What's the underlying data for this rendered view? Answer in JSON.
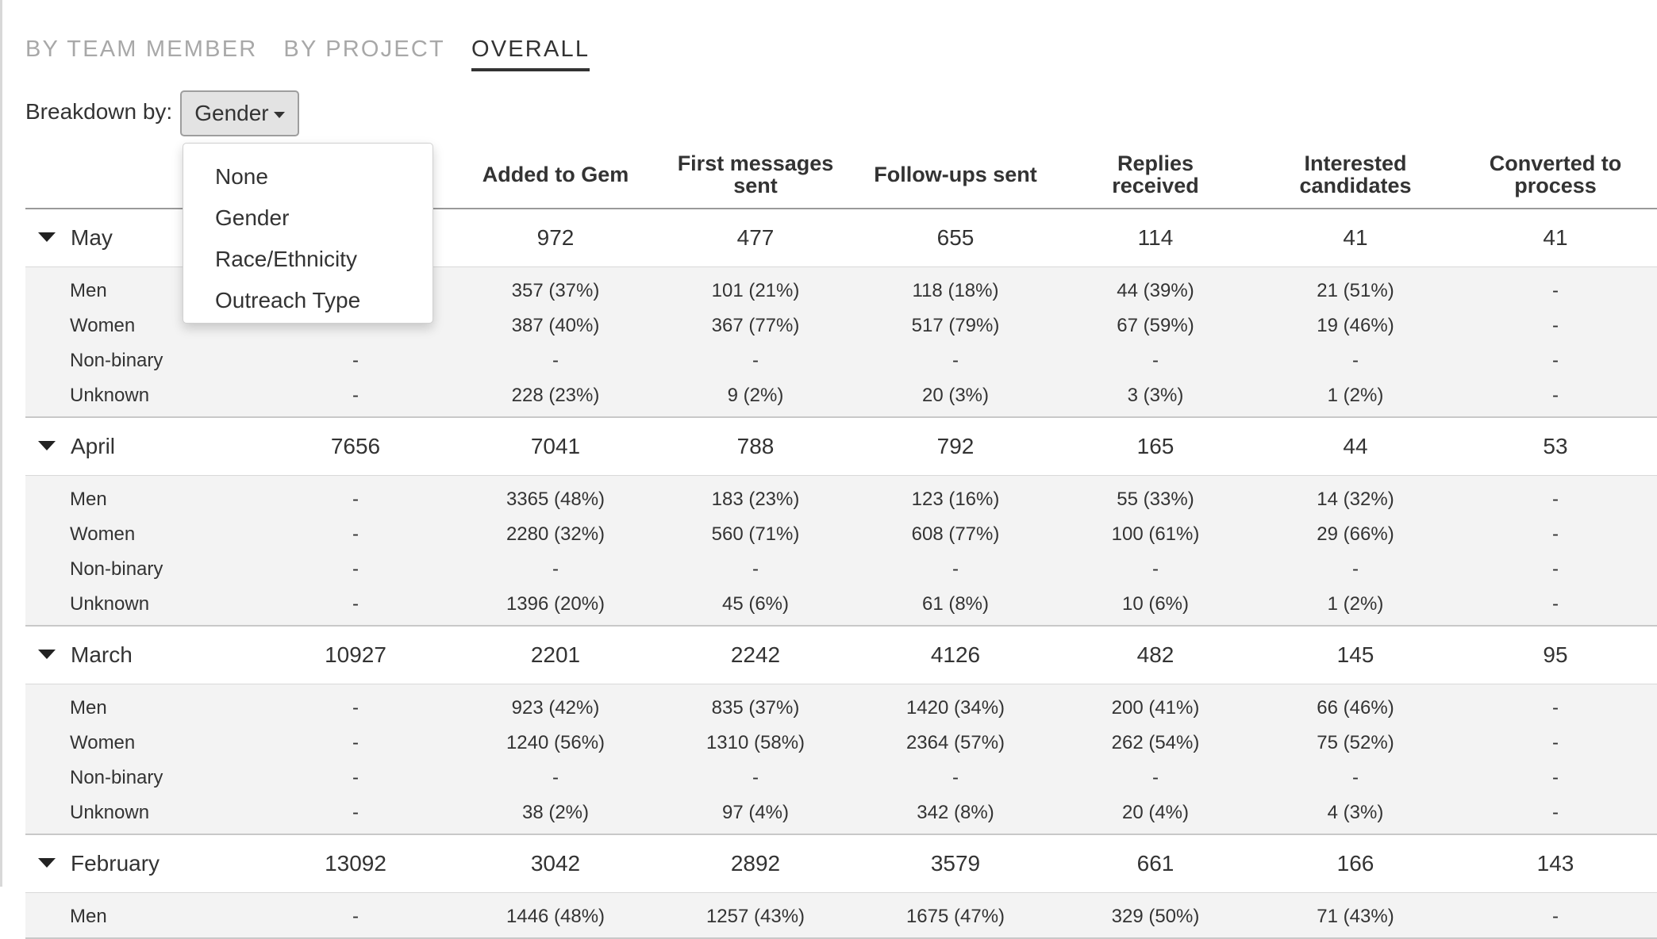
{
  "tabs": [
    {
      "label": "BY TEAM MEMBER",
      "active": false
    },
    {
      "label": "BY PROJECT",
      "active": false
    },
    {
      "label": "OVERALL",
      "active": true
    }
  ],
  "breakdown": {
    "label": "Breakdown by:",
    "selected": "Gender",
    "options": [
      "None",
      "Gender",
      "Race/Ethnicity",
      "Outreach Type"
    ]
  },
  "table": {
    "columns": [
      "",
      "Added to Gem",
      "First messages sent",
      "Follow-ups sent",
      "Replies received",
      "Interested candidates",
      "Converted to process"
    ],
    "header_lines": [
      [
        ""
      ],
      [
        "Added to Gem"
      ],
      [
        "First messages",
        "sent"
      ],
      [
        "Follow-ups sent"
      ],
      [
        "Replies",
        "received"
      ],
      [
        "Interested",
        "candidates"
      ],
      [
        "Converted to",
        "process"
      ]
    ],
    "groups": [
      {
        "month": "May",
        "values": [
          "",
          "972",
          "477",
          "655",
          "114",
          "41",
          "41"
        ],
        "rows": [
          {
            "label": "Men",
            "values": [
              "",
              "357 (37%)",
              "101 (21%)",
              "118 (18%)",
              "44 (39%)",
              "21 (51%)",
              "-"
            ]
          },
          {
            "label": "Women",
            "values": [
              "",
              "387 (40%)",
              "367 (77%)",
              "517 (79%)",
              "67 (59%)",
              "19 (46%)",
              "-"
            ]
          },
          {
            "label": "Non-binary",
            "values": [
              "-",
              "-",
              "-",
              "-",
              "-",
              "-",
              "-"
            ]
          },
          {
            "label": "Unknown",
            "values": [
              "-",
              "228 (23%)",
              "9 (2%)",
              "20 (3%)",
              "3 (3%)",
              "1 (2%)",
              "-"
            ]
          }
        ]
      },
      {
        "month": "April",
        "values": [
          "7656",
          "7041",
          "788",
          "792",
          "165",
          "44",
          "53"
        ],
        "rows": [
          {
            "label": "Men",
            "values": [
              "-",
              "3365 (48%)",
              "183 (23%)",
              "123 (16%)",
              "55 (33%)",
              "14 (32%)",
              "-"
            ]
          },
          {
            "label": "Women",
            "values": [
              "-",
              "2280 (32%)",
              "560 (71%)",
              "608 (77%)",
              "100 (61%)",
              "29 (66%)",
              "-"
            ]
          },
          {
            "label": "Non-binary",
            "values": [
              "-",
              "-",
              "-",
              "-",
              "-",
              "-",
              "-"
            ]
          },
          {
            "label": "Unknown",
            "values": [
              "-",
              "1396 (20%)",
              "45 (6%)",
              "61 (8%)",
              "10 (6%)",
              "1 (2%)",
              "-"
            ]
          }
        ]
      },
      {
        "month": "March",
        "values": [
          "10927",
          "2201",
          "2242",
          "4126",
          "482",
          "145",
          "95"
        ],
        "rows": [
          {
            "label": "Men",
            "values": [
              "-",
              "923 (42%)",
              "835 (37%)",
              "1420 (34%)",
              "200 (41%)",
              "66 (46%)",
              "-"
            ]
          },
          {
            "label": "Women",
            "values": [
              "-",
              "1240 (56%)",
              "1310 (58%)",
              "2364 (57%)",
              "262 (54%)",
              "75 (52%)",
              "-"
            ]
          },
          {
            "label": "Non-binary",
            "values": [
              "-",
              "-",
              "-",
              "-",
              "-",
              "-",
              "-"
            ]
          },
          {
            "label": "Unknown",
            "values": [
              "-",
              "38 (2%)",
              "97 (4%)",
              "342 (8%)",
              "20 (4%)",
              "4 (3%)",
              "-"
            ]
          }
        ]
      },
      {
        "month": "February",
        "values": [
          "13092",
          "3042",
          "2892",
          "3579",
          "661",
          "166",
          "143"
        ],
        "rows": [
          {
            "label": "Men",
            "values": [
              "-",
              "1446 (48%)",
              "1257 (43%)",
              "1675 (47%)",
              "329 (50%)",
              "71 (43%)",
              "-"
            ]
          }
        ]
      }
    ]
  }
}
